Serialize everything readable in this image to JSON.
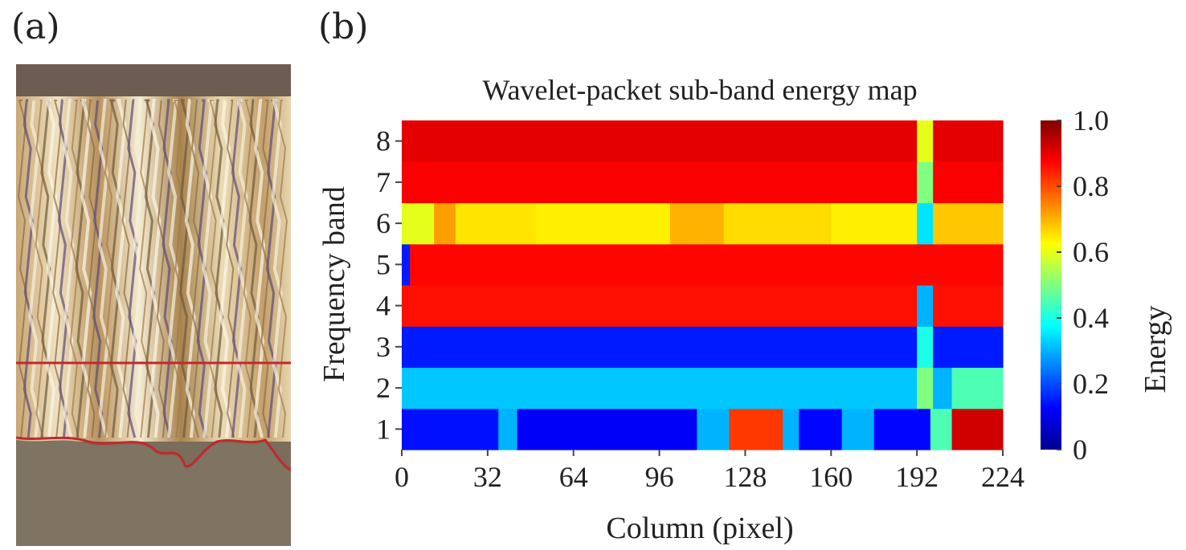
{
  "panels": {
    "a_label": "(a)",
    "b_label": "(b)"
  },
  "photo": {
    "description_icon": "fiber-structure-photo-icon",
    "line_color": "#c0292d"
  },
  "chart_data": {
    "type": "heatmap",
    "title": "Wavelet-packet sub-band energy map",
    "xlabel": "Column (pixel)",
    "ylabel": "Frequency band",
    "colorbar_label": "Energy",
    "colormap": "jet",
    "xlim": [
      0,
      224
    ],
    "ylim": [
      0.5,
      8.5
    ],
    "x_ticks": [
      0,
      32,
      64,
      96,
      128,
      160,
      192,
      224
    ],
    "y_ticks": [
      1,
      2,
      3,
      4,
      5,
      6,
      7,
      8
    ],
    "colorbar_ticks": [
      0,
      0.2,
      0.4,
      0.6,
      0.8,
      1.0
    ],
    "colorbar_tick_labels": [
      "0",
      "0.2",
      "0.4",
      "0.6",
      "0.8",
      "1.0"
    ],
    "vlim": [
      0,
      1
    ],
    "bands": [
      {
        "band": 1,
        "segments": [
          {
            "x0": 0,
            "x1": 36,
            "value": 0.14
          },
          {
            "x0": 36,
            "x1": 43,
            "value": 0.3
          },
          {
            "x0": 43,
            "x1": 110,
            "value": 0.12
          },
          {
            "x0": 110,
            "x1": 122,
            "value": 0.3
          },
          {
            "x0": 122,
            "x1": 142,
            "value": 0.82
          },
          {
            "x0": 142,
            "x1": 148,
            "value": 0.3
          },
          {
            "x0": 148,
            "x1": 164,
            "value": 0.13
          },
          {
            "x0": 164,
            "x1": 176,
            "value": 0.3
          },
          {
            "x0": 176,
            "x1": 197,
            "value": 0.13
          },
          {
            "x0": 197,
            "x1": 205,
            "value": 0.45
          },
          {
            "x0": 205,
            "x1": 224,
            "value": 0.92
          }
        ]
      },
      {
        "band": 2,
        "segments": [
          {
            "x0": 0,
            "x1": 192,
            "value": 0.32
          },
          {
            "x0": 192,
            "x1": 198,
            "value": 0.5
          },
          {
            "x0": 198,
            "x1": 205,
            "value": 0.3
          },
          {
            "x0": 205,
            "x1": 224,
            "value": 0.45
          }
        ]
      },
      {
        "band": 3,
        "segments": [
          {
            "x0": 0,
            "x1": 192,
            "value": 0.15
          },
          {
            "x0": 192,
            "x1": 198,
            "value": 0.4
          },
          {
            "x0": 198,
            "x1": 224,
            "value": 0.15
          }
        ]
      },
      {
        "band": 4,
        "segments": [
          {
            "x0": 0,
            "x1": 192,
            "value": 0.86
          },
          {
            "x0": 192,
            "x1": 198,
            "value": 0.3
          },
          {
            "x0": 198,
            "x1": 224,
            "value": 0.86
          }
        ]
      },
      {
        "band": 5,
        "segments": [
          {
            "x0": 0,
            "x1": 3,
            "value": 0.15
          },
          {
            "x0": 3,
            "x1": 224,
            "value": 0.87
          }
        ]
      },
      {
        "band": 6,
        "segments": [
          {
            "x0": 0,
            "x1": 12,
            "value": 0.6
          },
          {
            "x0": 12,
            "x1": 20,
            "value": 0.72
          },
          {
            "x0": 20,
            "x1": 50,
            "value": 0.65
          },
          {
            "x0": 50,
            "x1": 100,
            "value": 0.64
          },
          {
            "x0": 100,
            "x1": 120,
            "value": 0.7
          },
          {
            "x0": 120,
            "x1": 160,
            "value": 0.66
          },
          {
            "x0": 160,
            "x1": 192,
            "value": 0.64
          },
          {
            "x0": 192,
            "x1": 198,
            "value": 0.35
          },
          {
            "x0": 198,
            "x1": 224,
            "value": 0.68
          }
        ]
      },
      {
        "band": 7,
        "segments": [
          {
            "x0": 0,
            "x1": 192,
            "value": 0.88
          },
          {
            "x0": 192,
            "x1": 198,
            "value": 0.5
          },
          {
            "x0": 198,
            "x1": 224,
            "value": 0.88
          }
        ]
      },
      {
        "band": 8,
        "segments": [
          {
            "x0": 0,
            "x1": 192,
            "value": 0.9
          },
          {
            "x0": 192,
            "x1": 198,
            "value": 0.6
          },
          {
            "x0": 198,
            "x1": 224,
            "value": 0.9
          }
        ]
      }
    ]
  }
}
